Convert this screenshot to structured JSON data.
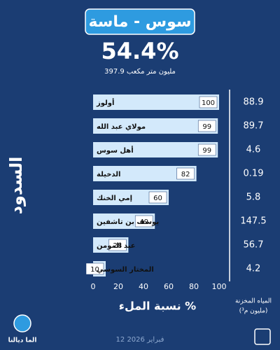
{
  "chart_data": {
    "type": "bar",
    "title": "سوس - ماسة",
    "headline": "54.4%",
    "subtitle": "397.9 مليون متر مكعب",
    "categories": [
      "أولوز",
      "مولاي عبد الله",
      "أهل سوس",
      "الدخيلة",
      "إمي الخنك",
      "يوسف بن تاشفين",
      "عبد المومن",
      "المختار السوسي"
    ],
    "values": [
      100,
      99,
      99,
      82,
      60,
      49,
      28,
      10
    ],
    "color": "#d3e9fb",
    "xlim": [
      0,
      100
    ],
    "xticks": [
      0,
      20,
      40,
      60,
      80,
      100
    ],
    "x_label": "نسبة الملء %",
    "y_label": "السدود",
    "stored": {
      "name": "المياه المخزنة",
      "unit": "(مليون م³)",
      "values": [
        88.9,
        89.7,
        4.6,
        0.19,
        5.8,
        147.5,
        56.7,
        4.2
      ]
    },
    "date": "12 فبراير 2026",
    "logo": "الما ديالنا"
  }
}
